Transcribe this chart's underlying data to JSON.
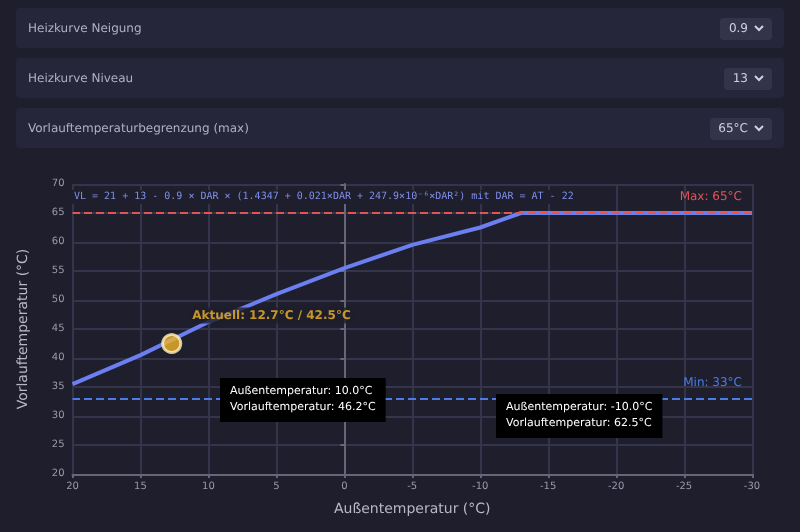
{
  "chart_data": {
    "type": "line",
    "xlabel": "Außentemperatur (°C)",
    "ylabel": "Vorlauftemperatur (°C)",
    "x": [
      20,
      15,
      10,
      5,
      0,
      -5,
      -10,
      -13,
      -30
    ],
    "series": [
      {
        "color": "#6b7ff0",
        "values": [
          35.5,
          40.5,
          46.2,
          51,
          55.5,
          59.5,
          62.5,
          65,
          65
        ]
      },
      {
        "type": "scatter",
        "name": "Aktuell: 12.7°C / 42.5°C",
        "color": "#f0b429",
        "x": [
          12.7
        ],
        "values": [
          42.5
        ]
      }
    ],
    "xlim": [
      20,
      -30
    ],
    "xticks": [
      20,
      15,
      10,
      5,
      0,
      -5,
      -10,
      -15,
      -20,
      -25,
      -30
    ],
    "ylim": [
      20,
      70
    ],
    "yticks": [
      20,
      25,
      30,
      35,
      40,
      45,
      50,
      55,
      60,
      65,
      70
    ],
    "grid": true,
    "ref_lines": [
      {
        "axis": "y",
        "value": 65,
        "label": "Max: 65°C",
        "color": "#e05555",
        "line_style": "dashed"
      },
      {
        "axis": "y",
        "value": 33,
        "label": "Min: 33°C",
        "color": "#4a7ce8",
        "line_style": "dashed"
      }
    ],
    "annotations": [
      "VL = 21 + 13 - 0.9 × DAR × (1.4347 + 0.021×DAR + 247.9×10⁻⁶×DAR²) mit DAR = AT - 22",
      "Außentemperatur: 10.0°C\nVorlauftemperatur: 46.2°C",
      "Außentemperatur: -10.0°C\nVorlauftemperatur: 62.5°C",
      "Heizkurve Neigung",
      "0.9",
      "Heizkurve Niveau",
      "13",
      "Vorlauftemperaturbegrenzung (max)",
      "65°C"
    ]
  }
}
